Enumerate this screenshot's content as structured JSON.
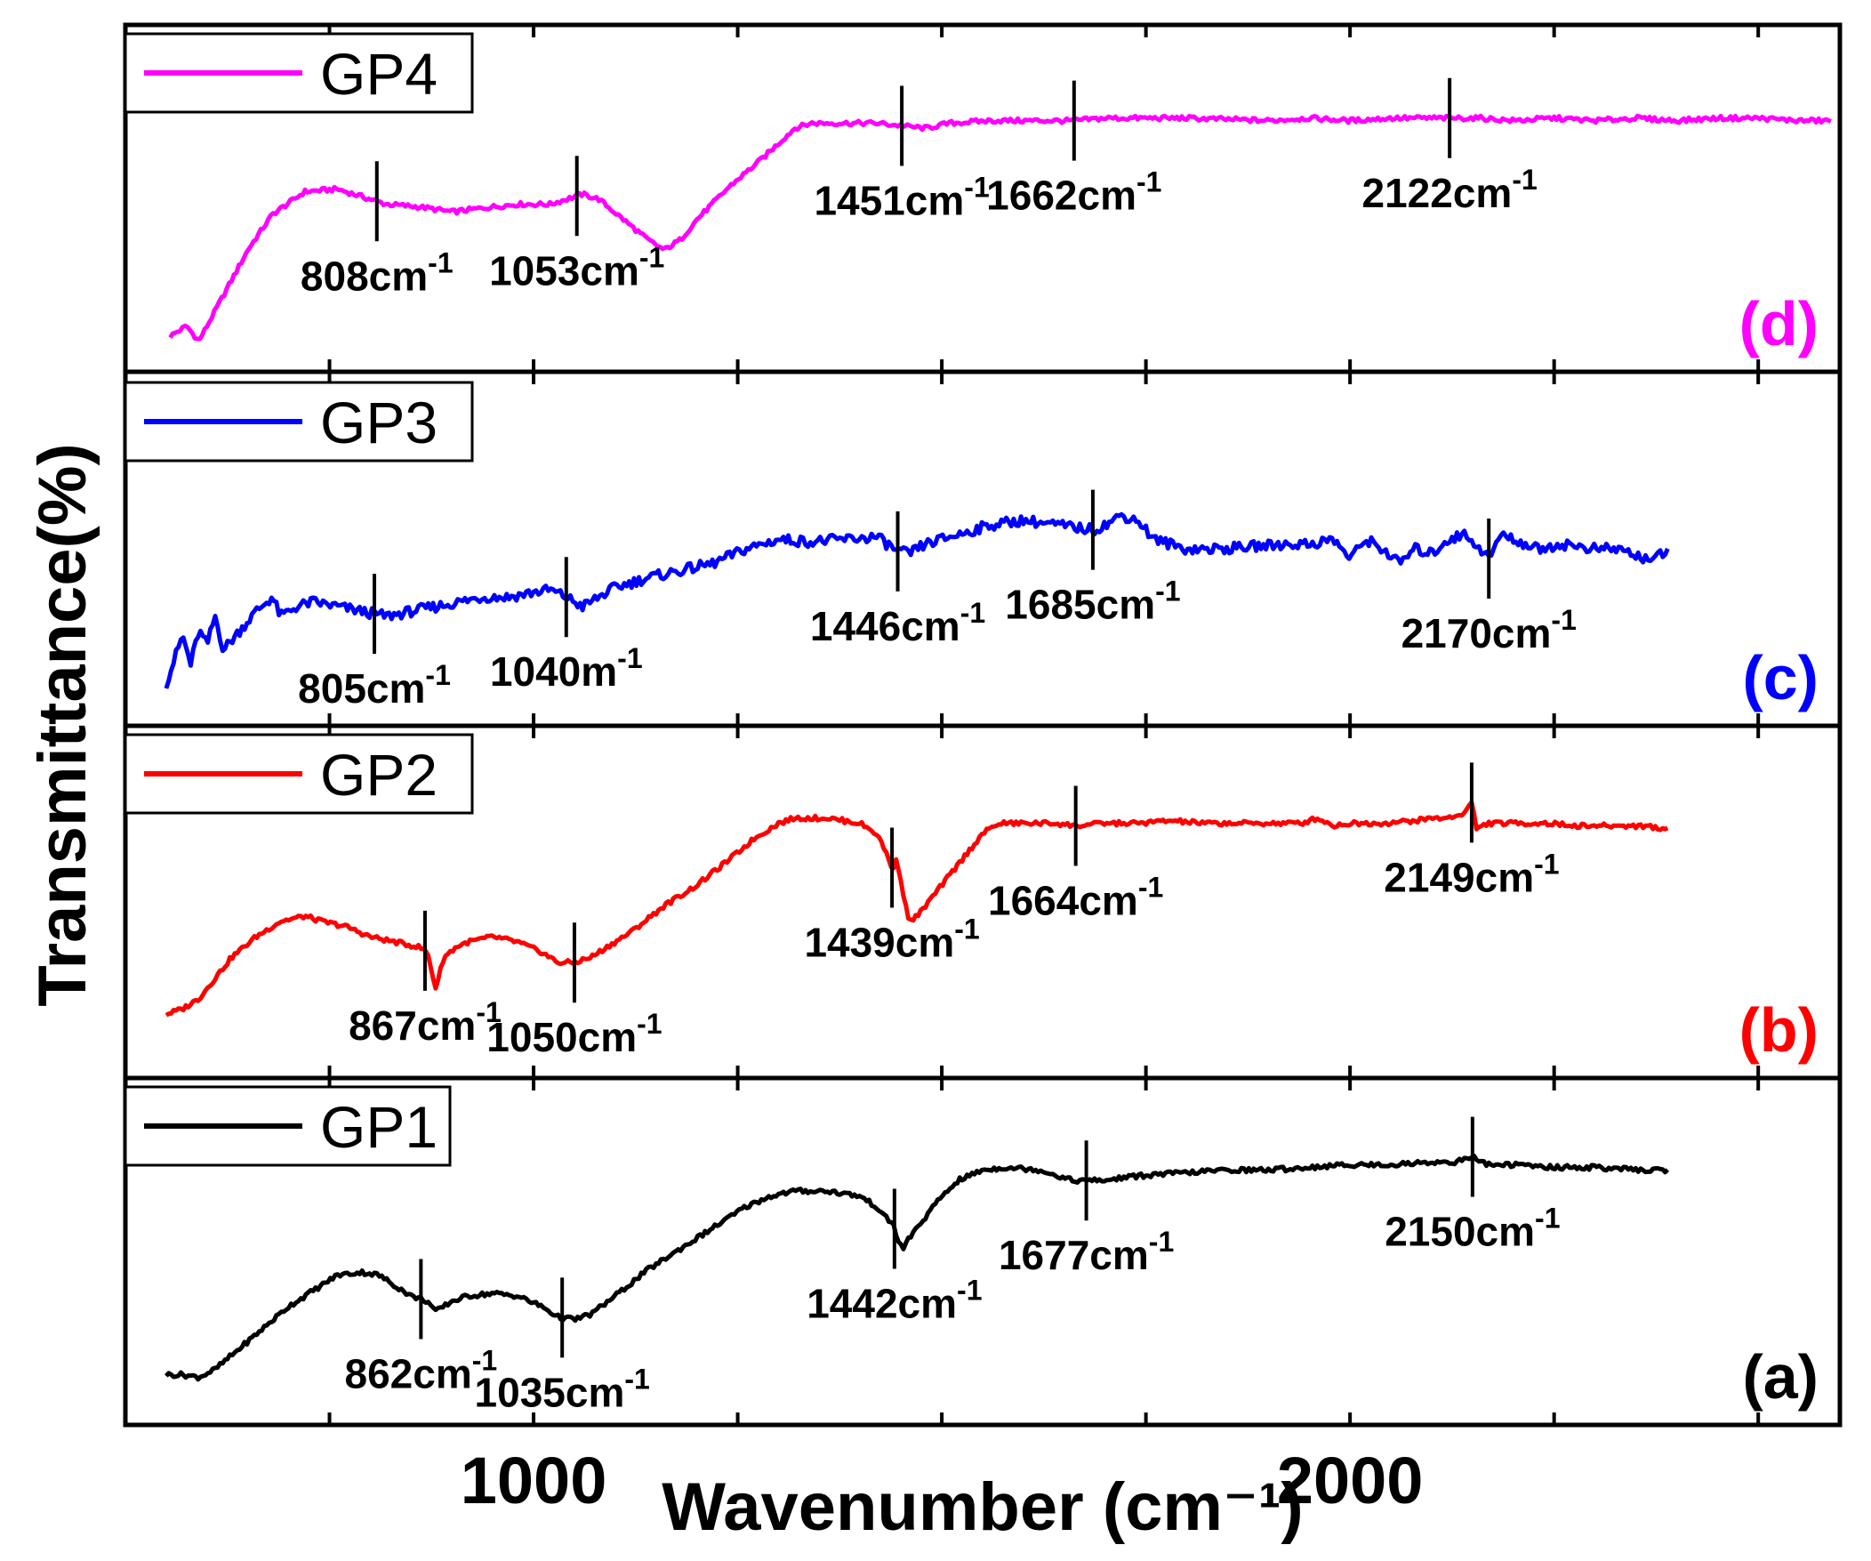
{
  "chart_data": {
    "type": "line",
    "xlabel": "Wavenumber (cm⁻¹)",
    "ylabel": "Transmittance(%)",
    "xlim": [
      500,
      2600
    ],
    "x_ticks": [
      1000,
      2000
    ],
    "x_tick_labels": [
      "1000",
      "2000"
    ],
    "y_unit_note": "stacked panels, arbitrary transmittance scale 0-100 per panel",
    "colors": {
      "GP1": "#000000",
      "GP2": "#ff0000",
      "GP3": "#0000ff",
      "GP4": "#ff00ff"
    },
    "panels": [
      {
        "id": "d",
        "label": "(d)",
        "series": "GP4",
        "legend": "GP4",
        "color": "#ff00ff",
        "points": [
          [
            555,
            6
          ],
          [
            575,
            10
          ],
          [
            590,
            4
          ],
          [
            620,
            22
          ],
          [
            650,
            40
          ],
          [
            680,
            54
          ],
          [
            720,
            63
          ],
          [
            760,
            64
          ],
          [
            800,
            60
          ],
          [
            820,
            58
          ],
          [
            860,
            57
          ],
          [
            900,
            55
          ],
          [
            950,
            57
          ],
          [
            980,
            58
          ],
          [
            1020,
            58
          ],
          [
            1060,
            62
          ],
          [
            1080,
            60
          ],
          [
            1110,
            52
          ],
          [
            1140,
            44
          ],
          [
            1160,
            40
          ],
          [
            1180,
            44
          ],
          [
            1200,
            52
          ],
          [
            1240,
            65
          ],
          [
            1280,
            76
          ],
          [
            1320,
            88
          ],
          [
            1340,
            90
          ],
          [
            1380,
            90
          ],
          [
            1420,
            90
          ],
          [
            1450,
            89
          ],
          [
            1480,
            88
          ],
          [
            1510,
            90
          ],
          [
            1560,
            91
          ],
          [
            1600,
            91
          ],
          [
            1662,
            91
          ],
          [
            1700,
            92
          ],
          [
            1800,
            92
          ],
          [
            1900,
            91
          ],
          [
            1950,
            92
          ],
          [
            2000,
            91
          ],
          [
            2050,
            92
          ],
          [
            2122,
            92
          ],
          [
            2160,
            92
          ],
          [
            2200,
            91
          ],
          [
            2250,
            92
          ],
          [
            2300,
            91
          ],
          [
            2350,
            92
          ],
          [
            2400,
            91
          ],
          [
            2450,
            92
          ],
          [
            2500,
            92
          ],
          [
            2550,
            91
          ],
          [
            2590,
            91
          ]
        ],
        "annotations": [
          {
            "wn": 808,
            "text": "808cm",
            "sup": "-1",
            "pos": "below"
          },
          {
            "wn": 1053,
            "text": "1053cm",
            "sup": "-1",
            "pos": "below"
          },
          {
            "wn": 1451,
            "text": "1451cm",
            "sup": "-1",
            "pos": "below"
          },
          {
            "wn": 1662,
            "text": "1662cm",
            "sup": "-1",
            "pos": "below"
          },
          {
            "wn": 2122,
            "text": "2122cm",
            "sup": "-1",
            "pos": "below"
          }
        ]
      },
      {
        "id": "c",
        "label": "(c)",
        "series": "GP3",
        "legend": "GP3",
        "color": "#0000ff",
        "points": [
          [
            550,
            8
          ],
          [
            560,
            18
          ],
          [
            570,
            28
          ],
          [
            580,
            16
          ],
          [
            590,
            30
          ],
          [
            600,
            24
          ],
          [
            610,
            36
          ],
          [
            620,
            22
          ],
          [
            640,
            30
          ],
          [
            660,
            38
          ],
          [
            680,
            44
          ],
          [
            690,
            36
          ],
          [
            710,
            40
          ],
          [
            730,
            42
          ],
          [
            760,
            40
          ],
          [
            790,
            38
          ],
          [
            820,
            36
          ],
          [
            850,
            38
          ],
          [
            880,
            40
          ],
          [
            910,
            42
          ],
          [
            940,
            44
          ],
          [
            970,
            44
          ],
          [
            1000,
            46
          ],
          [
            1020,
            47
          ],
          [
            1040,
            44
          ],
          [
            1060,
            40
          ],
          [
            1080,
            44
          ],
          [
            1100,
            48
          ],
          [
            1140,
            52
          ],
          [
            1180,
            55
          ],
          [
            1220,
            58
          ],
          [
            1260,
            64
          ],
          [
            1300,
            68
          ],
          [
            1340,
            67
          ],
          [
            1380,
            68
          ],
          [
            1420,
            69
          ],
          [
            1446,
            63
          ],
          [
            1460,
            62
          ],
          [
            1480,
            66
          ],
          [
            1520,
            70
          ],
          [
            1560,
            74
          ],
          [
            1600,
            76
          ],
          [
            1640,
            74
          ],
          [
            1685,
            72
          ],
          [
            1700,
            74
          ],
          [
            1720,
            78
          ],
          [
            1740,
            76
          ],
          [
            1760,
            68
          ],
          [
            1800,
            64
          ],
          [
            1840,
            64
          ],
          [
            1880,
            65
          ],
          [
            1920,
            66
          ],
          [
            1950,
            66
          ],
          [
            1980,
            68
          ],
          [
            2000,
            60
          ],
          [
            2020,
            68
          ],
          [
            2040,
            64
          ],
          [
            2060,
            58
          ],
          [
            2080,
            64
          ],
          [
            2100,
            62
          ],
          [
            2120,
            68
          ],
          [
            2140,
            70
          ],
          [
            2155,
            66
          ],
          [
            2170,
            60
          ],
          [
            2185,
            70
          ],
          [
            2200,
            68
          ],
          [
            2230,
            64
          ],
          [
            2260,
            66
          ],
          [
            2300,
            64
          ],
          [
            2330,
            64
          ],
          [
            2360,
            60
          ],
          [
            2390,
            62
          ]
        ],
        "annotations": [
          {
            "wn": 805,
            "text": "805cm",
            "sup": "-1",
            "pos": "below"
          },
          {
            "wn": 1040,
            "text": "1040m",
            "sup": "-1",
            "pos": "below"
          },
          {
            "wn": 1446,
            "text": "1446cm",
            "sup": "-1",
            "pos": "below"
          },
          {
            "wn": 1685,
            "text": "1685cm",
            "sup": "-1",
            "pos": "below"
          },
          {
            "wn": 2170,
            "text": "2170cm",
            "sup": "-1",
            "pos": "below"
          }
        ]
      },
      {
        "id": "b",
        "label": "(b)",
        "series": "GP2",
        "legend": "GP2",
        "color": "#ff0000",
        "points": [
          [
            550,
            12
          ],
          [
            570,
            14
          ],
          [
            590,
            18
          ],
          [
            610,
            26
          ],
          [
            630,
            34
          ],
          [
            660,
            42
          ],
          [
            690,
            48
          ],
          [
            720,
            50
          ],
          [
            740,
            48
          ],
          [
            770,
            46
          ],
          [
            800,
            42
          ],
          [
            830,
            40
          ],
          [
            860,
            38
          ],
          [
            870,
            36
          ],
          [
            880,
            22
          ],
          [
            890,
            34
          ],
          [
            905,
            38
          ],
          [
            920,
            40
          ],
          [
            950,
            42
          ],
          [
            980,
            40
          ],
          [
            1010,
            36
          ],
          [
            1030,
            32
          ],
          [
            1050,
            32
          ],
          [
            1070,
            34
          ],
          [
            1090,
            38
          ],
          [
            1120,
            44
          ],
          [
            1160,
            54
          ],
          [
            1200,
            62
          ],
          [
            1240,
            72
          ],
          [
            1270,
            80
          ],
          [
            1300,
            86
          ],
          [
            1320,
            88
          ],
          [
            1360,
            88
          ],
          [
            1400,
            86
          ],
          [
            1420,
            82
          ],
          [
            1430,
            76
          ],
          [
            1440,
            68
          ],
          [
            1445,
            72
          ],
          [
            1450,
            64
          ],
          [
            1455,
            55
          ],
          [
            1460,
            48
          ],
          [
            1470,
            50
          ],
          [
            1490,
            58
          ],
          [
            1510,
            66
          ],
          [
            1530,
            74
          ],
          [
            1550,
            82
          ],
          [
            1570,
            86
          ],
          [
            1600,
            86
          ],
          [
            1640,
            86
          ],
          [
            1664,
            85
          ],
          [
            1700,
            86
          ],
          [
            1740,
            86
          ],
          [
            1780,
            87
          ],
          [
            1820,
            86
          ],
          [
            1860,
            86
          ],
          [
            1900,
            86
          ],
          [
            1940,
            86
          ],
          [
            1960,
            88
          ],
          [
            1980,
            85
          ],
          [
            2000,
            86
          ],
          [
            2040,
            86
          ],
          [
            2080,
            87
          ],
          [
            2100,
            88
          ],
          [
            2120,
            88
          ],
          [
            2140,
            90
          ],
          [
            2149,
            94
          ],
          [
            2155,
            84
          ],
          [
            2170,
            86
          ],
          [
            2200,
            86
          ],
          [
            2240,
            86
          ],
          [
            2280,
            85
          ],
          [
            2320,
            85
          ],
          [
            2360,
            85
          ],
          [
            2380,
            84
          ],
          [
            2390,
            84
          ]
        ],
        "annotations": [
          {
            "wn": 867,
            "text": "867cm",
            "sup": "-1",
            "pos": "below"
          },
          {
            "wn": 1050,
            "text": "1050cm",
            "sup": "-1",
            "pos": "below"
          },
          {
            "wn": 1439,
            "text": "1439cm",
            "sup": "-1",
            "pos": "below"
          },
          {
            "wn": 1664,
            "text": "1664cm",
            "sup": "-1",
            "pos": "below"
          },
          {
            "wn": 2149,
            "text": "2149cm",
            "sup": "-1",
            "pos": "below"
          }
        ]
      },
      {
        "id": "a",
        "label": "(a)",
        "series": "GP1",
        "legend": "GP1",
        "color": "#000000",
        "points": [
          [
            550,
            10
          ],
          [
            570,
            10
          ],
          [
            590,
            9
          ],
          [
            610,
            12
          ],
          [
            640,
            20
          ],
          [
            670,
            28
          ],
          [
            700,
            36
          ],
          [
            730,
            42
          ],
          [
            760,
            48
          ],
          [
            790,
            49
          ],
          [
            810,
            48
          ],
          [
            830,
            44
          ],
          [
            850,
            40
          ],
          [
            870,
            38
          ],
          [
            880,
            34
          ],
          [
            890,
            36
          ],
          [
            900,
            38
          ],
          [
            920,
            40
          ],
          [
            950,
            41
          ],
          [
            980,
            40
          ],
          [
            1010,
            36
          ],
          [
            1030,
            32
          ],
          [
            1050,
            31
          ],
          [
            1070,
            33
          ],
          [
            1100,
            40
          ],
          [
            1140,
            50
          ],
          [
            1180,
            58
          ],
          [
            1220,
            66
          ],
          [
            1260,
            74
          ],
          [
            1290,
            78
          ],
          [
            1320,
            80
          ],
          [
            1360,
            80
          ],
          [
            1400,
            78
          ],
          [
            1420,
            74
          ],
          [
            1430,
            70
          ],
          [
            1440,
            68
          ],
          [
            1445,
            62
          ],
          [
            1452,
            58
          ],
          [
            1460,
            62
          ],
          [
            1480,
            70
          ],
          [
            1500,
            78
          ],
          [
            1520,
            84
          ],
          [
            1550,
            88
          ],
          [
            1580,
            89
          ],
          [
            1620,
            88
          ],
          [
            1640,
            86
          ],
          [
            1660,
            84
          ],
          [
            1677,
            84
          ],
          [
            1700,
            84
          ],
          [
            1720,
            85
          ],
          [
            1750,
            86
          ],
          [
            1800,
            87
          ],
          [
            1850,
            88
          ],
          [
            1900,
            88
          ],
          [
            1950,
            89
          ],
          [
            2000,
            90
          ],
          [
            2050,
            90
          ],
          [
            2100,
            91
          ],
          [
            2130,
            91
          ],
          [
            2150,
            93
          ],
          [
            2170,
            90
          ],
          [
            2200,
            90
          ],
          [
            2250,
            89
          ],
          [
            2300,
            89
          ],
          [
            2350,
            88
          ],
          [
            2390,
            88
          ]
        ],
        "annotations": [
          {
            "wn": 862,
            "text": "862cm",
            "sup": "-1",
            "pos": "below"
          },
          {
            "wn": 1035,
            "text": "1035cm",
            "sup": "-1",
            "pos": "below"
          },
          {
            "wn": 1442,
            "text": "1442cm",
            "sup": "-1",
            "pos": "below"
          },
          {
            "wn": 1677,
            "text": "1677cm",
            "sup": "-1",
            "pos": "below"
          },
          {
            "wn": 2150,
            "text": "2150cm",
            "sup": "-1",
            "pos": "below"
          }
        ]
      }
    ]
  }
}
